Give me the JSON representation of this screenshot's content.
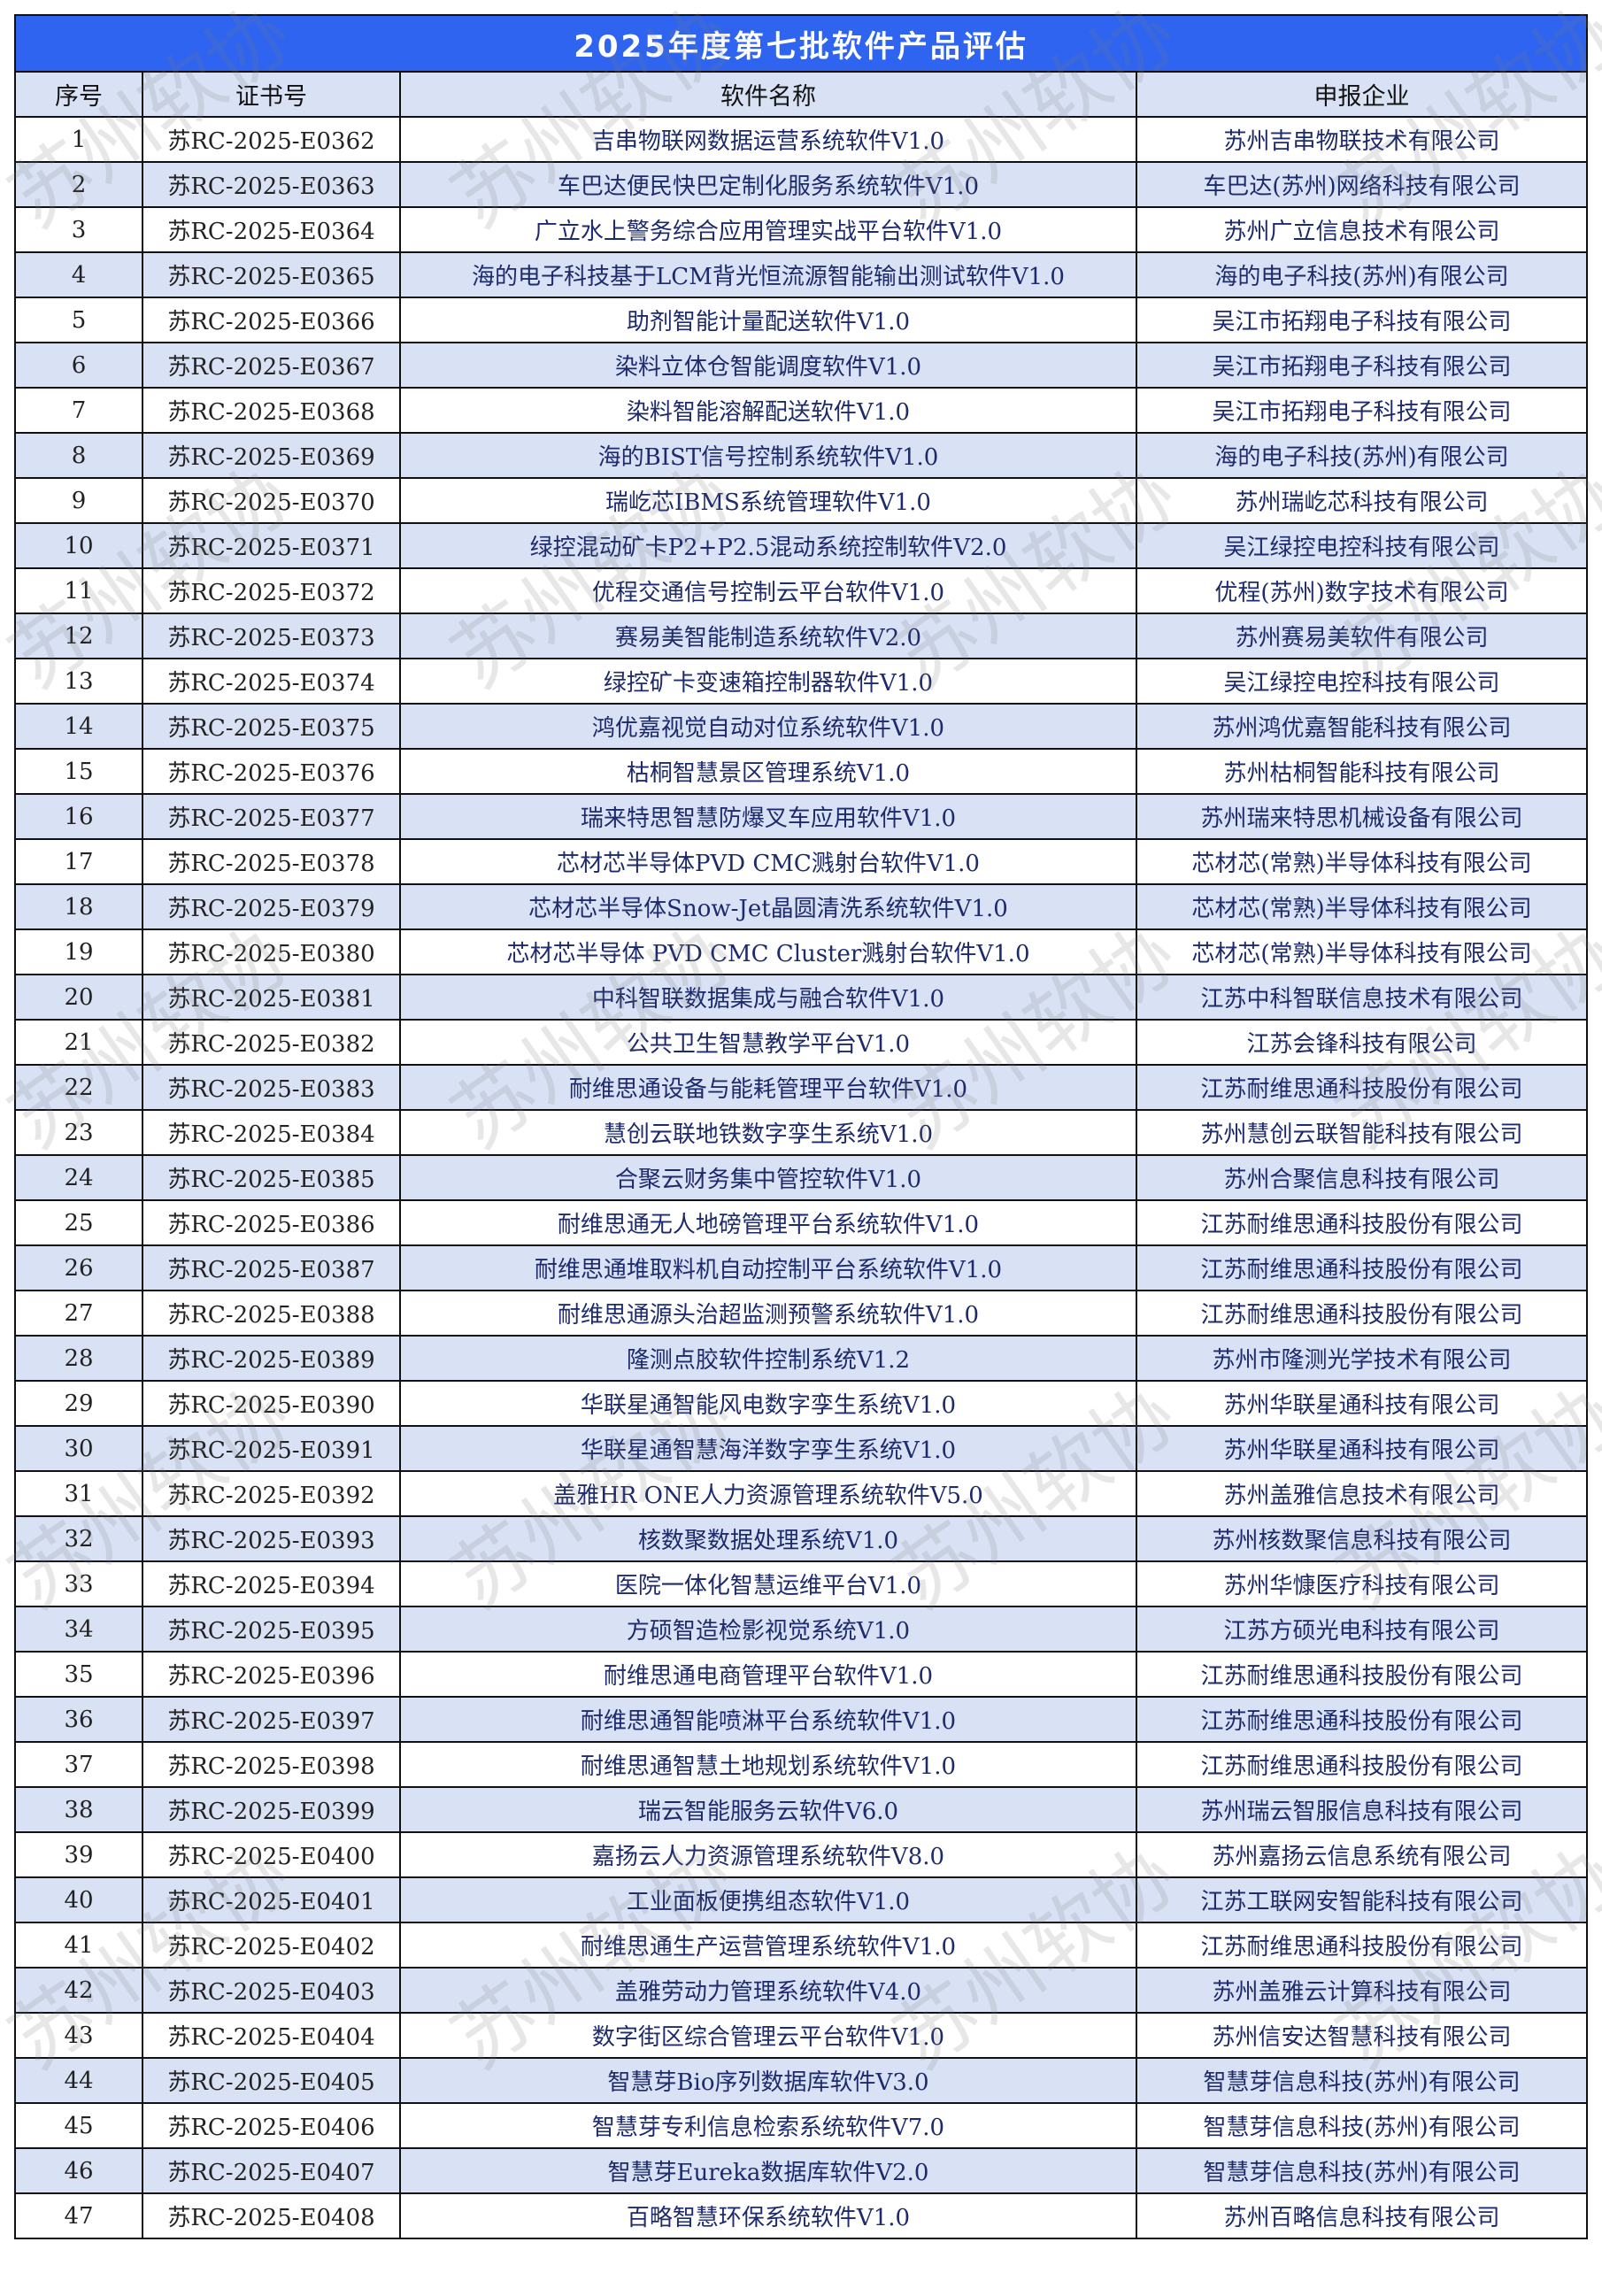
{
  "title": "2025年度第七批软件产品评估",
  "headers": [
    "序号",
    "证书号",
    "软件名称",
    "申报企业"
  ],
  "watermark": "苏州软协",
  "colors": {
    "title_bg": "#2e64ef",
    "header_bg": "#d9e2f5",
    "alt_row_bg": "#d9e2f5"
  },
  "rows": [
    [
      "1",
      "苏RC-2025-E0362",
      "吉串物联网数据运营系统软件V1.0",
      "苏州吉串物联技术有限公司"
    ],
    [
      "2",
      "苏RC-2025-E0363",
      "车巴达便民快巴定制化服务系统软件V1.0",
      "车巴达(苏州)网络科技有限公司"
    ],
    [
      "3",
      "苏RC-2025-E0364",
      "广立水上警务综合应用管理实战平台软件V1.0",
      "苏州广立信息技术有限公司"
    ],
    [
      "4",
      "苏RC-2025-E0365",
      "海的电子科技基于LCM背光恒流源智能输出测试软件V1.0",
      "海的电子科技(苏州)有限公司"
    ],
    [
      "5",
      "苏RC-2025-E0366",
      "助剂智能计量配送软件V1.0",
      "吴江市拓翔电子科技有限公司"
    ],
    [
      "6",
      "苏RC-2025-E0367",
      "染料立体仓智能调度软件V1.0",
      "吴江市拓翔电子科技有限公司"
    ],
    [
      "7",
      "苏RC-2025-E0368",
      "染料智能溶解配送软件V1.0",
      "吴江市拓翔电子科技有限公司"
    ],
    [
      "8",
      "苏RC-2025-E0369",
      "海的BIST信号控制系统软件V1.0",
      "海的电子科技(苏州)有限公司"
    ],
    [
      "9",
      "苏RC-2025-E0370",
      "瑞屹芯IBMS系统管理软件V1.0",
      "苏州瑞屹芯科技有限公司"
    ],
    [
      "10",
      "苏RC-2025-E0371",
      "绿控混动矿卡P2+P2.5混动系统控制软件V2.0",
      "吴江绿控电控科技有限公司"
    ],
    [
      "11",
      "苏RC-2025-E0372",
      "优程交通信号控制云平台软件V1.0",
      "优程(苏州)数字技术有限公司"
    ],
    [
      "12",
      "苏RC-2025-E0373",
      "赛易美智能制造系统软件V2.0",
      "苏州赛易美软件有限公司"
    ],
    [
      "13",
      "苏RC-2025-E0374",
      "绿控矿卡变速箱控制器软件V1.0",
      "吴江绿控电控科技有限公司"
    ],
    [
      "14",
      "苏RC-2025-E0375",
      "鸿优嘉视觉自动对位系统软件V1.0",
      "苏州鸿优嘉智能科技有限公司"
    ],
    [
      "15",
      "苏RC-2025-E0376",
      "枯桐智慧景区管理系统V1.0",
      "苏州枯桐智能科技有限公司"
    ],
    [
      "16",
      "苏RC-2025-E0377",
      "瑞来特思智慧防爆叉车应用软件V1.0",
      "苏州瑞来特思机械设备有限公司"
    ],
    [
      "17",
      "苏RC-2025-E0378",
      "芯材芯半导体PVD CMC溅射台软件V1.0",
      "芯材芯(常熟)半导体科技有限公司"
    ],
    [
      "18",
      "苏RC-2025-E0379",
      "芯材芯半导体Snow-Jet晶圆清洗系统软件V1.0",
      "芯材芯(常熟)半导体科技有限公司"
    ],
    [
      "19",
      "苏RC-2025-E0380",
      "芯材芯半导体 PVD CMC Cluster溅射台软件V1.0",
      "芯材芯(常熟)半导体科技有限公司"
    ],
    [
      "20",
      "苏RC-2025-E0381",
      "中科智联数据集成与融合软件V1.0",
      "江苏中科智联信息技术有限公司"
    ],
    [
      "21",
      "苏RC-2025-E0382",
      "公共卫生智慧教学平台V1.0",
      "江苏会锋科技有限公司"
    ],
    [
      "22",
      "苏RC-2025-E0383",
      "耐维思通设备与能耗管理平台软件V1.0",
      "江苏耐维思通科技股份有限公司"
    ],
    [
      "23",
      "苏RC-2025-E0384",
      "慧创云联地铁数字孪生系统V1.0",
      "苏州慧创云联智能科技有限公司"
    ],
    [
      "24",
      "苏RC-2025-E0385",
      "合聚云财务集中管控软件V1.0",
      "苏州合聚信息科技有限公司"
    ],
    [
      "25",
      "苏RC-2025-E0386",
      "耐维思通无人地磅管理平台系统软件V1.0",
      "江苏耐维思通科技股份有限公司"
    ],
    [
      "26",
      "苏RC-2025-E0387",
      "耐维思通堆取料机自动控制平台系统软件V1.0",
      "江苏耐维思通科技股份有限公司"
    ],
    [
      "27",
      "苏RC-2025-E0388",
      "耐维思通源头治超监测预警系统软件V1.0",
      "江苏耐维思通科技股份有限公司"
    ],
    [
      "28",
      "苏RC-2025-E0389",
      "隆测点胶软件控制系统V1.2",
      "苏州市隆测光学技术有限公司"
    ],
    [
      "29",
      "苏RC-2025-E0390",
      "华联星通智能风电数字孪生系统V1.0",
      "苏州华联星通科技有限公司"
    ],
    [
      "30",
      "苏RC-2025-E0391",
      "华联星通智慧海洋数字孪生系统V1.0",
      "苏州华联星通科技有限公司"
    ],
    [
      "31",
      "苏RC-2025-E0392",
      "盖雅HR ONE人力资源管理系统软件V5.0",
      "苏州盖雅信息技术有限公司"
    ],
    [
      "32",
      "苏RC-2025-E0393",
      "核数聚数据处理系统V1.0",
      "苏州核数聚信息科技有限公司"
    ],
    [
      "33",
      "苏RC-2025-E0394",
      "医院一体化智慧运维平台V1.0",
      "苏州华慷医疗科技有限公司"
    ],
    [
      "34",
      "苏RC-2025-E0395",
      "方硕智造检影视觉系统V1.0",
      "江苏方硕光电科技有限公司"
    ],
    [
      "35",
      "苏RC-2025-E0396",
      "耐维思通电商管理平台软件V1.0",
      "江苏耐维思通科技股份有限公司"
    ],
    [
      "36",
      "苏RC-2025-E0397",
      "耐维思通智能喷淋平台系统软件V1.0",
      "江苏耐维思通科技股份有限公司"
    ],
    [
      "37",
      "苏RC-2025-E0398",
      "耐维思通智慧土地规划系统软件V1.0",
      "江苏耐维思通科技股份有限公司"
    ],
    [
      "38",
      "苏RC-2025-E0399",
      "瑞云智能服务云软件V6.0",
      "苏州瑞云智服信息科技有限公司"
    ],
    [
      "39",
      "苏RC-2025-E0400",
      "嘉扬云人力资源管理系统软件V8.0",
      "苏州嘉扬云信息系统有限公司"
    ],
    [
      "40",
      "苏RC-2025-E0401",
      "工业面板便携组态软件V1.0",
      "江苏工联网安智能科技有限公司"
    ],
    [
      "41",
      "苏RC-2025-E0402",
      "耐维思通生产运营管理系统软件V1.0",
      "江苏耐维思通科技股份有限公司"
    ],
    [
      "42",
      "苏RC-2025-E0403",
      "盖雅劳动力管理系统软件V4.0",
      "苏州盖雅云计算科技有限公司"
    ],
    [
      "43",
      "苏RC-2025-E0404",
      "数字街区综合管理云平台软件V1.0",
      "苏州信安达智慧科技有限公司"
    ],
    [
      "44",
      "苏RC-2025-E0405",
      "智慧芽Bio序列数据库软件V3.0",
      "智慧芽信息科技(苏州)有限公司"
    ],
    [
      "45",
      "苏RC-2025-E0406",
      "智慧芽专利信息检索系统软件V7.0",
      "智慧芽信息科技(苏州)有限公司"
    ],
    [
      "46",
      "苏RC-2025-E0407",
      "智慧芽Eureka数据库软件V2.0",
      "智慧芽信息科技(苏州)有限公司"
    ],
    [
      "47",
      "苏RC-2025-E0408",
      "百略智慧环保系统软件V1.0",
      "苏州百略信息科技有限公司"
    ]
  ]
}
